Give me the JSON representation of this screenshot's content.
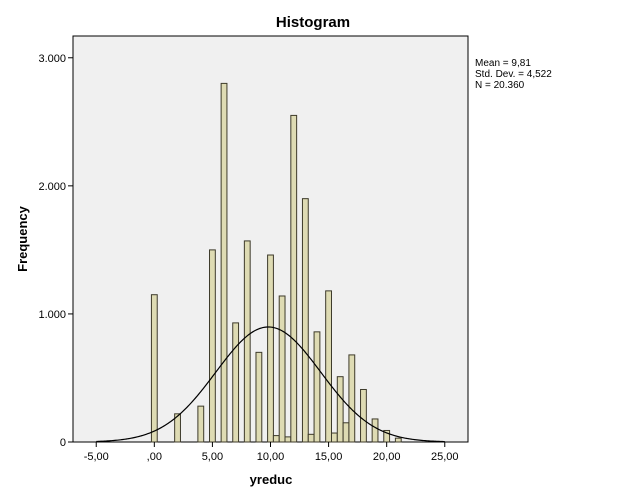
{
  "chart_data": {
    "type": "bar",
    "title": "Histogram",
    "xlabel": "yreduc",
    "ylabel": "Frequency",
    "xlim": [
      -7,
      27
    ],
    "ylim": [
      0,
      3170
    ],
    "x_ticks": [
      -5,
      0,
      5,
      10,
      15,
      20,
      25
    ],
    "x_tick_labels": [
      "-5,00",
      ",00",
      "5,00",
      "10,00",
      "15,00",
      "20,00",
      "25,00"
    ],
    "y_ticks": [
      0,
      1000,
      2000,
      3000
    ],
    "y_tick_labels": [
      "0",
      "1.000",
      "2.000",
      "3.000"
    ],
    "bin_width": 0.5,
    "bins": [
      {
        "x": 0,
        "count": 1150
      },
      {
        "x": 2,
        "count": 220
      },
      {
        "x": 4,
        "count": 280
      },
      {
        "x": 5,
        "count": 1500
      },
      {
        "x": 6,
        "count": 2800
      },
      {
        "x": 7,
        "count": 930
      },
      {
        "x": 8,
        "count": 1570
      },
      {
        "x": 9,
        "count": 700
      },
      {
        "x": 10,
        "count": 1460
      },
      {
        "x": 10.5,
        "count": 50
      },
      {
        "x": 11,
        "count": 1140
      },
      {
        "x": 11.5,
        "count": 40
      },
      {
        "x": 12,
        "count": 2550
      },
      {
        "x": 13,
        "count": 1900
      },
      {
        "x": 13.5,
        "count": 60
      },
      {
        "x": 14,
        "count": 860
      },
      {
        "x": 15,
        "count": 1180
      },
      {
        "x": 15.5,
        "count": 70
      },
      {
        "x": 16,
        "count": 510
      },
      {
        "x": 16.5,
        "count": 150
      },
      {
        "x": 17,
        "count": 680
      },
      {
        "x": 18,
        "count": 410
      },
      {
        "x": 19,
        "count": 180
      },
      {
        "x": 20,
        "count": 90
      },
      {
        "x": 21,
        "count": 30
      }
    ],
    "normal_curve": {
      "mean": 9.81,
      "std_dev": 4.522,
      "n": 20360
    },
    "grid": false,
    "colors": {
      "bar_fill": "#dedbb3",
      "bar_stroke": "#3d3a2a",
      "plot_background": "#f0f0f0",
      "axis": "#000000",
      "curve": "#000000"
    }
  },
  "stats": {
    "mean": "Mean = 9,81",
    "std_dev": "Std. Dev. = 4,522",
    "n": "N = 20.360"
  }
}
